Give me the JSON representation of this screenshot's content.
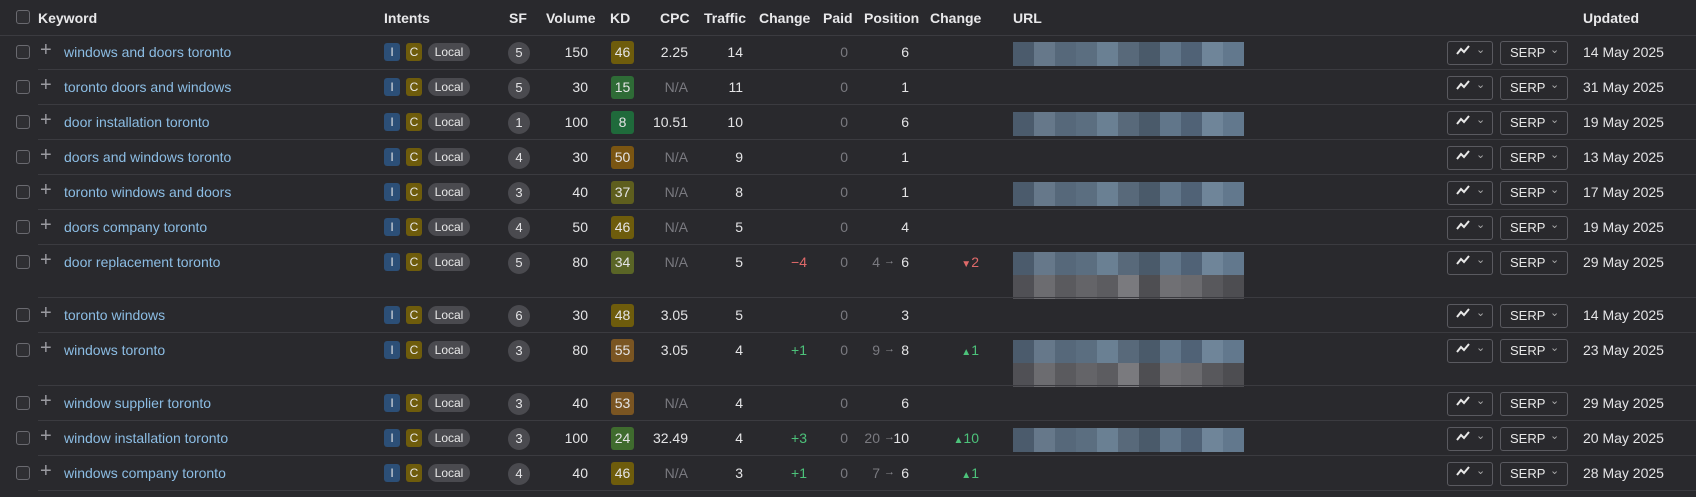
{
  "header": {
    "keyword": "Keyword",
    "intents": "Intents",
    "sf": "SF",
    "volume": "Volume",
    "kd": "KD",
    "cpc": "CPC",
    "traffic": "Traffic",
    "change": "Change",
    "paid": "Paid",
    "position": "Position",
    "position_change": "Change",
    "url": "URL",
    "updated": "Updated"
  },
  "labels": {
    "intent_i": "I",
    "intent_c": "C",
    "local": "Local",
    "serp": "SERP",
    "chevron": "⌄",
    "plus": "+",
    "arrow": "→"
  },
  "icons": {
    "chart": "trend-line-icon",
    "chevron": "chevron-down-icon",
    "add": "plus-icon"
  },
  "colors": {
    "keyword_link": "#8cbde4",
    "positive": "#4cc27a",
    "negative": "#e06a6a"
  },
  "rows": [
    {
      "keyword": "windows and doors toronto",
      "sf": "5",
      "volume": "150",
      "kd": "46",
      "kd_color": "#6e5c0c",
      "cpc": "2.25",
      "traffic": "14",
      "change": "",
      "paid": "0",
      "pos_from": "",
      "pos": "6",
      "pos_change": "",
      "pos_dir": "",
      "updated": "14 May 2025",
      "url_lines": 1
    },
    {
      "keyword": "toronto doors and windows",
      "sf": "5",
      "volume": "30",
      "kd": "15",
      "kd_color": "#2e6b36",
      "cpc": "N/A",
      "traffic": "11",
      "change": "",
      "paid": "0",
      "pos_from": "",
      "pos": "1",
      "pos_change": "",
      "pos_dir": "",
      "updated": "31 May 2025",
      "url_lines": 0
    },
    {
      "keyword": "door installation toronto",
      "sf": "1",
      "volume": "100",
      "kd": "8",
      "kd_color": "#1f6a3b",
      "cpc": "10.51",
      "traffic": "10",
      "change": "",
      "paid": "0",
      "pos_from": "",
      "pos": "6",
      "pos_change": "",
      "pos_dir": "",
      "updated": "19 May 2025",
      "url_lines": 1
    },
    {
      "keyword": "doors and windows toronto",
      "sf": "4",
      "volume": "30",
      "kd": "50",
      "kd_color": "#7a5512",
      "cpc": "N/A",
      "traffic": "9",
      "change": "",
      "paid": "0",
      "pos_from": "",
      "pos": "1",
      "pos_change": "",
      "pos_dir": "",
      "updated": "13 May 2025",
      "url_lines": 0
    },
    {
      "keyword": "toronto windows and doors",
      "sf": "3",
      "volume": "40",
      "kd": "37",
      "kd_color": "#5e5e1e",
      "cpc": "N/A",
      "traffic": "8",
      "change": "",
      "paid": "0",
      "pos_from": "",
      "pos": "1",
      "pos_change": "",
      "pos_dir": "",
      "updated": "17 May 2025",
      "url_lines": 1
    },
    {
      "keyword": "doors company toronto",
      "sf": "4",
      "volume": "50",
      "kd": "46",
      "kd_color": "#6e5c0c",
      "cpc": "N/A",
      "traffic": "5",
      "change": "",
      "paid": "0",
      "pos_from": "",
      "pos": "4",
      "pos_change": "",
      "pos_dir": "",
      "updated": "19 May 2025",
      "url_lines": 0
    },
    {
      "keyword": "door replacement toronto",
      "sf": "5",
      "volume": "80",
      "kd": "34",
      "kd_color": "#5a6526",
      "cpc": "N/A",
      "traffic": "5",
      "change": "−4",
      "paid": "0",
      "pos_from": "4",
      "pos": "6",
      "pos_change": "2",
      "pos_dir": "down",
      "updated": "29 May 2025",
      "url_lines": 2
    },
    {
      "keyword": "toronto windows",
      "sf": "6",
      "volume": "30",
      "kd": "48",
      "kd_color": "#6e5c0c",
      "cpc": "3.05",
      "traffic": "5",
      "change": "",
      "paid": "0",
      "pos_from": "",
      "pos": "3",
      "pos_change": "",
      "pos_dir": "",
      "updated": "14 May 2025",
      "url_lines": 0
    },
    {
      "keyword": "windows toronto",
      "sf": "3",
      "volume": "80",
      "kd": "55",
      "kd_color": "#7a5522",
      "cpc": "3.05",
      "traffic": "4",
      "change": "+1",
      "paid": "0",
      "pos_from": "9",
      "pos": "8",
      "pos_change": "1",
      "pos_dir": "up",
      "updated": "23 May 2025",
      "url_lines": 2
    },
    {
      "keyword": "window supplier toronto",
      "sf": "3",
      "volume": "40",
      "kd": "53",
      "kd_color": "#7a5522",
      "cpc": "N/A",
      "traffic": "4",
      "change": "",
      "paid": "0",
      "pos_from": "",
      "pos": "6",
      "pos_change": "",
      "pos_dir": "",
      "updated": "29 May 2025",
      "url_lines": 0
    },
    {
      "keyword": "window installation toronto",
      "sf": "3",
      "volume": "100",
      "kd": "24",
      "kd_color": "#3f6b2e",
      "cpc": "32.49",
      "traffic": "4",
      "change": "+3",
      "paid": "0",
      "pos_from": "20",
      "pos": "10",
      "pos_change": "10",
      "pos_dir": "up",
      "updated": "20 May 2025",
      "url_lines": 1
    },
    {
      "keyword": "windows company toronto",
      "sf": "4",
      "volume": "40",
      "kd": "46",
      "kd_color": "#6e5c0c",
      "cpc": "N/A",
      "traffic": "3",
      "change": "+1",
      "paid": "0",
      "pos_from": "7",
      "pos": "6",
      "pos_change": "1",
      "pos_dir": "up",
      "updated": "28 May 2025",
      "url_lines": 0
    }
  ]
}
